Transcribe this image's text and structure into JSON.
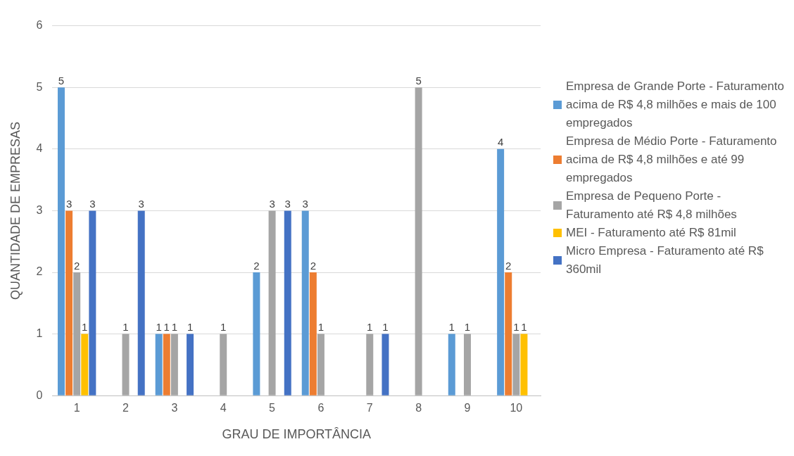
{
  "chart_data": {
    "type": "bar",
    "xlabel": "GRAU DE IMPORTÂNCIA",
    "ylabel": "QUANTIDADE DE EMPRESAS",
    "categories": [
      "1",
      "2",
      "3",
      "4",
      "5",
      "6",
      "7",
      "8",
      "9",
      "10"
    ],
    "series": [
      {
        "name": "Empresa de Grande Porte - Faturamento acima de R$ 4,8 milhões e mais de 100 empregados",
        "color": "#5b9bd5",
        "values": [
          5,
          null,
          1,
          null,
          2,
          3,
          null,
          null,
          1,
          4
        ]
      },
      {
        "name": "Empresa de Médio Porte - Faturamento acima de R$ 4,8 milhões e até 99 empregados",
        "color": "#ed7d31",
        "values": [
          3,
          null,
          1,
          null,
          null,
          2,
          null,
          null,
          null,
          2
        ]
      },
      {
        "name": "Empresa de Pequeno Porte - Faturamento até R$ 4,8 milhões",
        "color": "#a5a5a5",
        "values": [
          2,
          1,
          1,
          1,
          3,
          1,
          1,
          5,
          1,
          1
        ]
      },
      {
        "name": "MEI - Faturamento até R$ 81mil",
        "color": "#ffc000",
        "values": [
          1,
          null,
          null,
          null,
          null,
          null,
          null,
          null,
          null,
          1
        ]
      },
      {
        "name": "Micro Empresa - Faturamento até R$ 360mil",
        "color": "#4472c4",
        "values": [
          3,
          3,
          1,
          null,
          3,
          null,
          1,
          null,
          null,
          null
        ]
      }
    ],
    "ylim": [
      0,
      6
    ],
    "yticks": [
      0,
      1,
      2,
      3,
      4,
      5,
      6
    ],
    "grid": "y",
    "legend": "right",
    "data_labels": true
  }
}
